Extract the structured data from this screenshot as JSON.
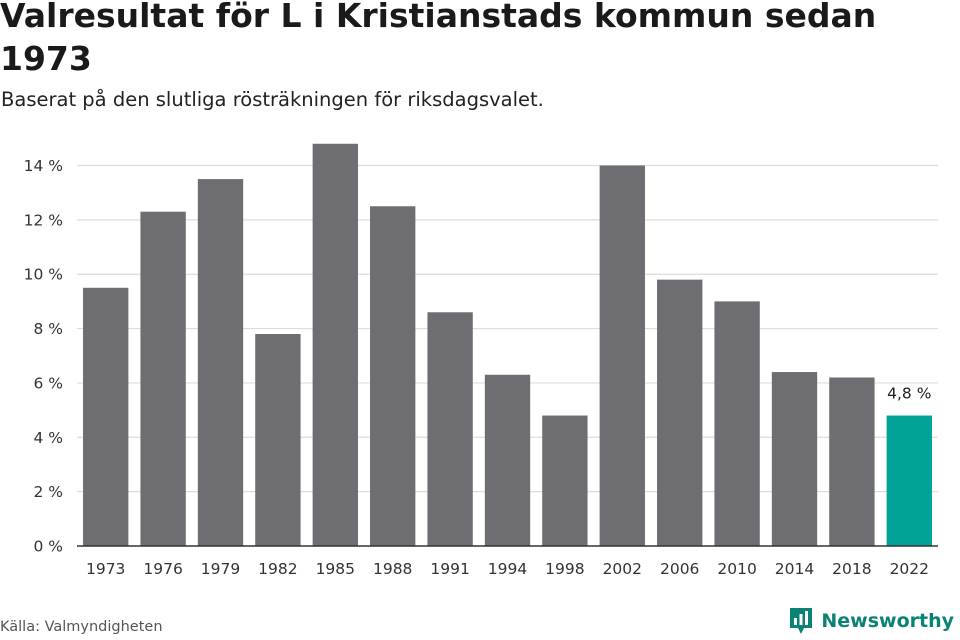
{
  "title": "Valresultat för L i Kristianstads kommun sedan 1973",
  "subtitle": "Baserat på den slutliga rösträkningen för riksdagsvalet.",
  "source": "Källa: Valmyndigheten",
  "brand": {
    "name": "Newsworthy",
    "icon": "newsworthy-logo-icon"
  },
  "colors": {
    "bar": "#6e6d72",
    "highlight": "#00a396",
    "grid": "#dcdcdc",
    "axis": "#333333"
  },
  "chart_data": {
    "type": "bar",
    "categories": [
      "1973",
      "1976",
      "1979",
      "1982",
      "1985",
      "1988",
      "1991",
      "1994",
      "1998",
      "2002",
      "2006",
      "2010",
      "2014",
      "2018",
      "2022"
    ],
    "values": [
      9.5,
      12.3,
      13.5,
      7.8,
      14.8,
      12.5,
      8.6,
      6.3,
      4.8,
      14.0,
      9.8,
      9.0,
      6.4,
      6.2,
      4.8
    ],
    "ylim": [
      0,
      14
    ],
    "yticks": [
      0,
      2,
      4,
      6,
      8,
      10,
      12,
      14
    ],
    "ytick_labels": [
      "0 %",
      "2 %",
      "4 %",
      "6 %",
      "8 %",
      "10 %",
      "12 %",
      "14 %"
    ],
    "highlight_index": 14,
    "data_labels": [
      {
        "index": 14,
        "text": "4,8 %"
      }
    ],
    "grid": true,
    "legend": "none"
  }
}
